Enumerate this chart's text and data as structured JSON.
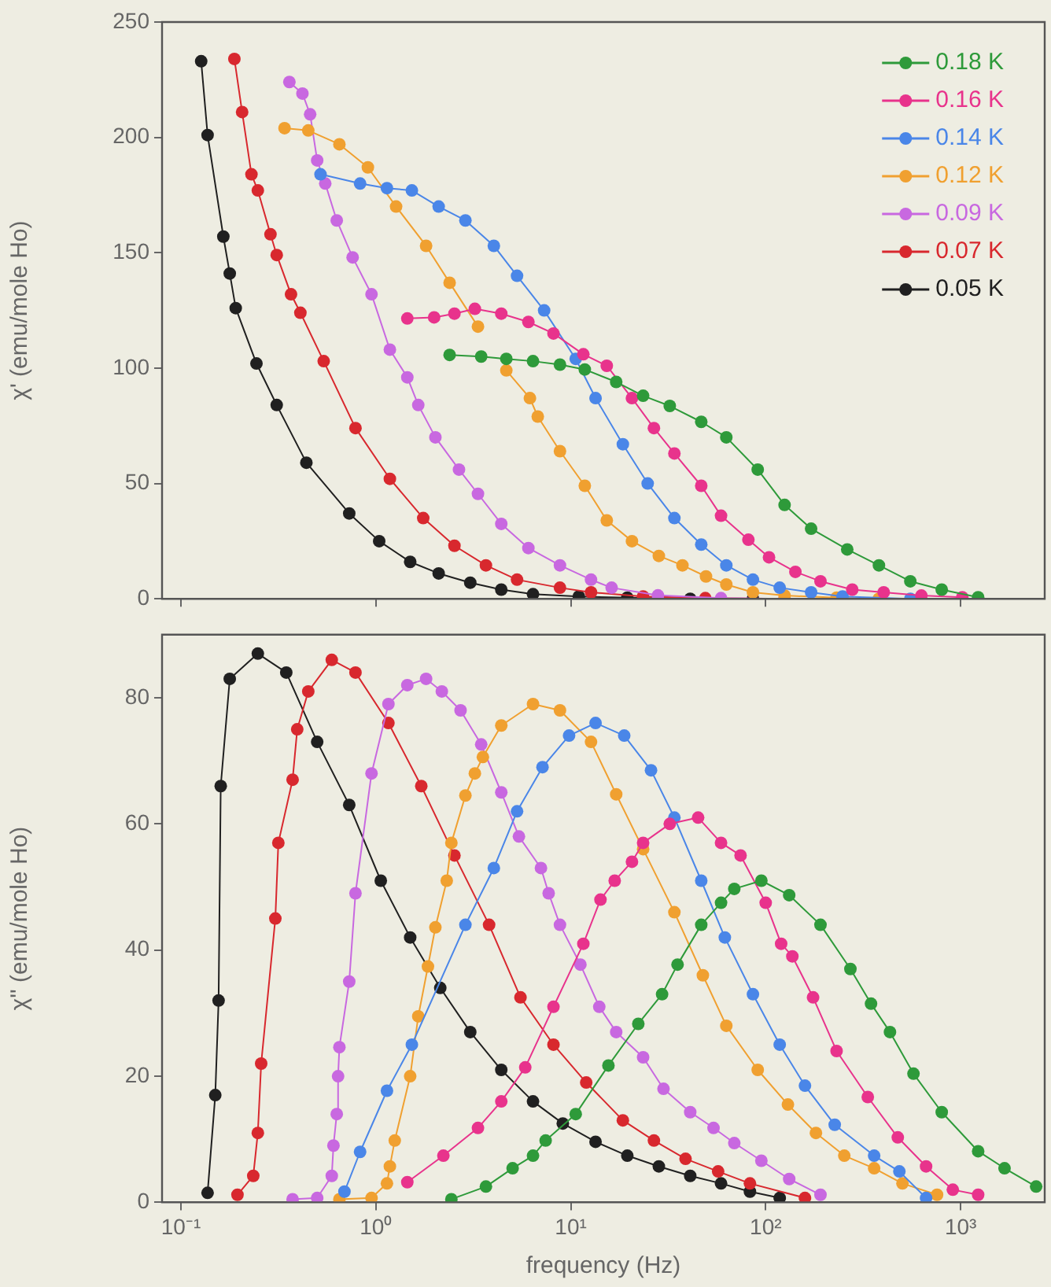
{
  "chart_data": [
    {
      "type": "line",
      "ylabel": "χ' (emu/mole Ho)",
      "xlim": [
        0.08,
        2700
      ],
      "log": "x",
      "ylim": [
        0,
        250
      ],
      "yticks": [
        0,
        50,
        100,
        150,
        200,
        250
      ],
      "xticks": [
        0.1,
        1,
        10,
        100,
        1000
      ],
      "tick_labels": "y",
      "legend": "top right",
      "marker": "circle",
      "line_style": "solid",
      "series": [
        {
          "name": "0.18 K",
          "color": "#2e9a3a",
          "x": [
            2.39,
            3.47,
            4.67,
            6.4,
            8.8,
            11.8,
            17.1,
            23.5,
            32.2,
            46.7,
            62.8,
            91,
            125,
            171,
            262,
            381,
            552,
            800,
            1230
          ],
          "values": [
            105.7,
            105,
            104,
            103,
            101.5,
            99.4,
            94,
            88,
            83.6,
            76.7,
            70,
            56,
            40.7,
            30.4,
            21.4,
            14.5,
            7.6,
            4,
            0.7
          ]
        },
        {
          "name": "0.16 K",
          "color": "#e8338c",
          "x": [
            1.45,
            1.99,
            2.53,
            3.22,
            4.4,
            6.06,
            8.15,
            11.6,
            15.3,
            20.6,
            26.7,
            34,
            46.7,
            59,
            81.5,
            104,
            142,
            191,
            278,
            403,
            629,
            1020
          ],
          "values": [
            121.5,
            122,
            123.6,
            125.7,
            123.6,
            120,
            115,
            106,
            101,
            87,
            74,
            63,
            49,
            36,
            25.6,
            18,
            11.7,
            7.6,
            4,
            2.8,
            1.4,
            0.7
          ]
        },
        {
          "name": "0.14 K",
          "color": "#4a86e8",
          "x": [
            0.52,
            0.83,
            1.14,
            1.53,
            2.1,
            2.88,
            4.03,
            5.3,
            7.3,
            10.6,
            13.4,
            18.5,
            24.8,
            34,
            46.7,
            62.8,
            86,
            118,
            171,
            248,
            552
          ],
          "values": [
            184,
            180,
            178,
            177,
            170,
            164,
            153,
            140,
            125,
            104,
            87,
            67,
            50,
            35,
            23.5,
            14.5,
            8.3,
            4.8,
            2.8,
            1,
            0
          ]
        },
        {
          "name": "0.12 K",
          "color": "#f0a030",
          "x": [
            0.34,
            0.45,
            0.65,
            0.91,
            1.27,
            1.81,
            2.39,
            3.34,
            3.54,
            4.67,
            6.17,
            6.77,
            8.8,
            11.8,
            15.3,
            20.6,
            28.3,
            37.4,
            49.4,
            62.8,
            86,
            125,
            231,
            380
          ],
          "values": [
            204,
            203,
            197,
            187,
            170,
            153,
            137,
            118,
            null,
            99,
            87,
            79,
            64,
            49,
            34,
            25,
            18.6,
            14.5,
            9.7,
            6.2,
            2.8,
            1.4,
            0.5,
            0
          ]
        },
        {
          "name": "0.09 K",
          "color": "#c868e0",
          "x": [
            0.36,
            0.42,
            0.46,
            0.5,
            0.55,
            0.63,
            0.76,
            0.95,
            1.18,
            1.45,
            1.65,
            2.02,
            2.67,
            3.34,
            4.4,
            6.06,
            8.8,
            12.7,
            16.2,
            28,
            59,
            125
          ],
          "values": [
            224,
            219,
            210,
            190,
            180,
            164,
            148,
            132,
            108,
            96,
            84,
            70,
            56,
            45.5,
            32.5,
            22,
            14.5,
            8.3,
            4.8,
            1.5,
            0.3,
            0
          ]
        },
        {
          "name": "0.07 K",
          "color": "#d8282e",
          "x": [
            0.188,
            0.206,
            0.23,
            0.248,
            0.288,
            0.31,
            0.367,
            0.41,
            0.54,
            0.786,
            1.18,
            1.75,
            2.53,
            3.67,
            5.3,
            8.8,
            12.7,
            23.5,
            49,
            125
          ],
          "values": [
            234,
            211,
            184,
            177,
            158,
            149,
            132,
            124,
            103,
            74,
            52,
            35,
            23,
            14.5,
            8.3,
            4.8,
            2.8,
            1,
            0.3,
            0
          ]
        },
        {
          "name": "0.05 K",
          "color": "#202020",
          "x": [
            0.127,
            0.137,
            0.165,
            0.178,
            0.191,
            0.244,
            0.31,
            0.44,
            0.73,
            1.04,
            1.5,
            2.1,
            3.05,
            4.4,
            6.4,
            11,
            19.5,
            41,
            86
          ],
          "values": [
            233,
            201,
            157,
            141,
            126,
            102,
            84,
            59,
            37,
            25,
            16,
            11,
            7,
            4,
            2,
            1,
            0.5,
            0,
            0
          ]
        }
      ]
    },
    {
      "type": "line",
      "ylabel": "χ'' (emu/mole Ho)",
      "xlabel": "frequency (Hz)",
      "xlim": [
        0.08,
        2700
      ],
      "log": "x",
      "ylim": [
        0,
        90
      ],
      "yticks": [
        0,
        20,
        40,
        60,
        80
      ],
      "xticks": [
        {
          "value": 0.1,
          "label": "10⁻¹"
        },
        {
          "value": 1,
          "label": "10⁰"
        },
        {
          "value": 10,
          "label": "10¹"
        },
        {
          "value": 100,
          "label": "10²"
        },
        {
          "value": 1000,
          "label": "10³"
        }
      ],
      "marker": "circle",
      "line_style": "solid",
      "series": [
        {
          "color": "#2e9a3a",
          "x": [
            2.44,
            3.67,
            5.03,
            6.4,
            7.43,
            10.6,
            15.6,
            22.2,
            29.4,
            35.3,
            46.7,
            59,
            69,
            95,
            132,
            191,
            272,
            347,
            434,
            573,
            800,
            1230,
            1680,
            2440
          ],
          "values": [
            0.5,
            2.5,
            5.4,
            7.4,
            9.8,
            14,
            21.7,
            28.3,
            33,
            37.7,
            44,
            47.5,
            49.7,
            51,
            48.7,
            44,
            37,
            31.5,
            27,
            20.4,
            14.3,
            8.1,
            5.4,
            2.5
          ]
        },
        {
          "color": "#e8338c",
          "x": [
            1.45,
            2.22,
            3.34,
            4.4,
            5.84,
            8.15,
            11.6,
            14.2,
            16.8,
            20.6,
            23.5,
            32.2,
            45,
            59,
            74.3,
            100,
            120,
            137,
            175,
            231,
            334,
            476,
            665,
            912,
            1230
          ],
          "values": [
            3.2,
            7.4,
            11.8,
            16,
            21.4,
            31,
            41,
            48,
            51,
            54,
            57,
            60,
            61,
            57,
            55,
            47.5,
            41,
            39,
            32.5,
            24,
            16.7,
            10.3,
            5.7,
            2,
            1.2
          ]
        },
        {
          "color": "#4a86e8",
          "x": [
            0.69,
            0.83,
            1.14,
            1.53,
            2.88,
            4.03,
            5.3,
            7.16,
            9.8,
            13.4,
            18.8,
            25.8,
            34,
            46.7,
            61.7,
            86,
            118,
            159,
            226,
            360,
            485,
            665
          ],
          "values": [
            1.7,
            8,
            17.7,
            25,
            44,
            53,
            62,
            69,
            74,
            76,
            74,
            68.5,
            61,
            51,
            42,
            33,
            25,
            18.5,
            12.3,
            7.4,
            4.9,
            0.7
          ]
        },
        {
          "color": "#f0a030",
          "x": [
            0.65,
            0.95,
            1.14,
            1.18,
            1.25,
            1.5,
            1.65,
            1.85,
            2.02,
            2.31,
            2.44,
            2.88,
            3.22,
            3.54,
            4.4,
            6.4,
            8.8,
            12.7,
            17.1,
            23.5,
            34,
            47.6,
            62.8,
            91,
            130,
            181,
            253,
            360,
            503,
            757
          ],
          "values": [
            0.5,
            0.7,
            3,
            5.7,
            9.8,
            20,
            29.5,
            37.4,
            43.6,
            51,
            57,
            64.5,
            68,
            70.6,
            75.6,
            79,
            78,
            73,
            64.7,
            56,
            46,
            36,
            28,
            21,
            15.5,
            11,
            7.4,
            5.4,
            3,
            1.2
          ]
        },
        {
          "color": "#c868e0",
          "x": [
            0.374,
            0.5,
            0.594,
            0.606,
            0.63,
            0.64,
            0.65,
            0.73,
            0.786,
            0.95,
            1.16,
            1.45,
            1.81,
            2.18,
            2.72,
            3.47,
            4.4,
            5.42,
            7.03,
            7.7,
            8.8,
            11.2,
            14,
            17.1,
            23.5,
            29.9,
            41,
            54,
            69,
            95,
            132,
            191
          ],
          "values": [
            0.5,
            0.7,
            4.2,
            9,
            14,
            20,
            24.6,
            35,
            49,
            68,
            79,
            82,
            83,
            81,
            78,
            72.6,
            65,
            58,
            53,
            49,
            44,
            37.7,
            31,
            27,
            23,
            18,
            14.3,
            11.8,
            9.4,
            6.6,
            3.7,
            1.2
          ]
        },
        {
          "color": "#d8282e",
          "x": [
            0.195,
            0.235,
            0.248,
            0.258,
            0.305,
            0.316,
            0.374,
            0.395,
            0.45,
            0.594,
            0.786,
            1.16,
            1.71,
            2.53,
            3.81,
            5.52,
            8.15,
            12,
            18.5,
            26.7,
            38.8,
            57,
            83,
            159
          ],
          "values": [
            1.2,
            4.2,
            11,
            22,
            45,
            57,
            67,
            75,
            81,
            86,
            84,
            76,
            66,
            55,
            44,
            32.5,
            25,
            19,
            13,
            9.8,
            6.9,
            4.9,
            3,
            0.7
          ]
        },
        {
          "color": "#202020",
          "x": [
            0.137,
            0.15,
            0.156,
            0.16,
            0.178,
            0.248,
            0.347,
            0.5,
            0.73,
            1.06,
            1.5,
            2.14,
            3.05,
            4.4,
            6.4,
            9.1,
            13.4,
            19.5,
            28.3,
            41,
            59,
            83,
            118
          ],
          "values": [
            1.5,
            17,
            32,
            66,
            83,
            87,
            84,
            73,
            63,
            51,
            42,
            34,
            27,
            21,
            16,
            12.5,
            9.6,
            7.4,
            5.7,
            4.2,
            3,
            1.7,
            0.7
          ]
        }
      ]
    }
  ]
}
